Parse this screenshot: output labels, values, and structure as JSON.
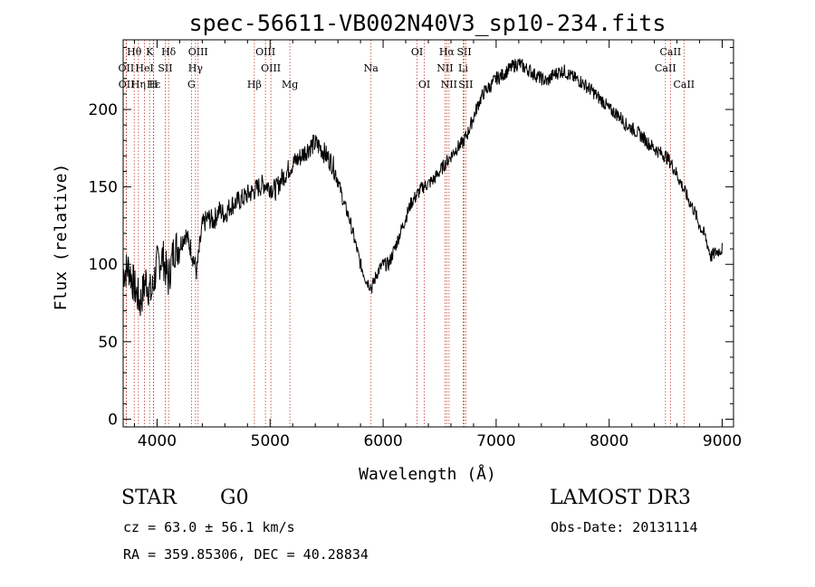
{
  "chart_data": {
    "type": "line",
    "title": "spec-56611-VB002N40V3_sp10-234.fits",
    "xlabel": "Wavelength (Å)",
    "ylabel": "Flux (relative)",
    "xlim": [
      3700,
      9100
    ],
    "ylim": [
      -5,
      245
    ],
    "xticks": [
      4000,
      5000,
      6000,
      7000,
      8000,
      9000
    ],
    "yticks": [
      0,
      50,
      100,
      150,
      200
    ],
    "series": [
      {
        "name": "flux",
        "color": "#000000",
        "x": [
          3700,
          3750,
          3800,
          3850,
          3900,
          3950,
          4000,
          4050,
          4100,
          4150,
          4200,
          4250,
          4300,
          4350,
          4400,
          4450,
          4500,
          4550,
          4600,
          4650,
          4700,
          4750,
          4800,
          4850,
          4900,
          4950,
          5000,
          5050,
          5100,
          5150,
          5200,
          5250,
          5300,
          5350,
          5400,
          5450,
          5500,
          5550,
          5600,
          5650,
          5700,
          5750,
          5800,
          5850,
          5900,
          5950,
          6000,
          6050,
          6100,
          6150,
          6200,
          6250,
          6300,
          6350,
          6400,
          6450,
          6500,
          6550,
          6600,
          6650,
          6700,
          6750,
          6800,
          6850,
          6900,
          6950,
          7000,
          7050,
          7100,
          7150,
          7200,
          7250,
          7300,
          7350,
          7400,
          7450,
          7500,
          7550,
          7600,
          7650,
          7700,
          7750,
          7800,
          7850,
          7900,
          7950,
          8000,
          8050,
          8100,
          8150,
          8200,
          8250,
          8300,
          8350,
          8400,
          8450,
          8500,
          8550,
          8600,
          8650,
          8700,
          8750,
          8800,
          8850,
          8900,
          8950,
          9000
        ],
        "y": [
          95,
          98,
          85,
          75,
          90,
          80,
          100,
          105,
          90,
          110,
          112,
          120,
          110,
          95,
          125,
          130,
          128,
          135,
          132,
          138,
          140,
          142,
          145,
          147,
          150,
          152,
          150,
          148,
          155,
          160,
          165,
          168,
          172,
          176,
          178,
          175,
          170,
          165,
          155,
          140,
          130,
          115,
          100,
          90,
          85,
          95,
          100,
          100,
          110,
          120,
          130,
          140,
          145,
          150,
          152,
          155,
          160,
          165,
          170,
          175,
          178,
          185,
          195,
          205,
          212,
          215,
          220,
          222,
          225,
          228,
          230,
          227,
          225,
          222,
          220,
          218,
          222,
          224,
          225,
          222,
          220,
          218,
          215,
          212,
          208,
          205,
          200,
          198,
          195,
          190,
          188,
          185,
          182,
          178,
          175,
          172,
          170,
          165,
          158,
          150,
          142,
          135,
          125,
          118,
          105,
          108,
          110
        ]
      }
    ],
    "spectral_lines": [
      {
        "label": "Hθ",
        "x": 3798,
        "row": 0
      },
      {
        "label": "K",
        "x": 3934,
        "row": 0
      },
      {
        "label": "Hδ",
        "x": 4102,
        "row": 0
      },
      {
        "label": "OIII",
        "x": 4363,
        "row": 0
      },
      {
        "label": "OIII",
        "x": 4959,
        "row": 0
      },
      {
        "label": "OI",
        "x": 6300,
        "row": 0
      },
      {
        "label": "Hα",
        "x": 6563,
        "row": 0
      },
      {
        "label": "SII",
        "x": 6717,
        "row": 0
      },
      {
        "label": "CaII",
        "x": 8542,
        "row": 0
      },
      {
        "label": "OII",
        "x": 3727,
        "row": 1
      },
      {
        "label": "HeI",
        "x": 3889,
        "row": 1
      },
      {
        "label": "SII",
        "x": 4072,
        "row": 1
      },
      {
        "label": "Hγ",
        "x": 4340,
        "row": 1
      },
      {
        "label": "OIII",
        "x": 5007,
        "row": 1
      },
      {
        "label": "Na",
        "x": 5893,
        "row": 1
      },
      {
        "label": "NII",
        "x": 6548,
        "row": 1
      },
      {
        "label": "Li",
        "x": 6708,
        "row": 1
      },
      {
        "label": "CaII",
        "x": 8498,
        "row": 1
      },
      {
        "label": "OII",
        "x": 3729,
        "row": 2
      },
      {
        "label": "Hε",
        "x": 3970,
        "row": 2
      },
      {
        "label": "Hη",
        "x": 3835,
        "row": 2
      },
      {
        "label": "H",
        "x": 3968,
        "row": 2
      },
      {
        "label": "G",
        "x": 4304,
        "row": 2
      },
      {
        "label": "Hβ",
        "x": 4861,
        "row": 2
      },
      {
        "label": "Mg",
        "x": 5175,
        "row": 2
      },
      {
        "label": "OI",
        "x": 6364,
        "row": 2
      },
      {
        "label": "NII",
        "x": 6583,
        "row": 2
      },
      {
        "label": "SII",
        "x": 6731,
        "row": 2
      },
      {
        "label": "CaII",
        "x": 8662,
        "row": 2
      }
    ]
  },
  "info": {
    "class": "STAR",
    "subclass": "G0",
    "survey": "LAMOST DR3",
    "redshift": "cz = 63.0 ± 56.1 km/s",
    "obs_date": "Obs-Date: 20131114",
    "coords": "RA = 359.85306, DEC =  40.28834"
  }
}
